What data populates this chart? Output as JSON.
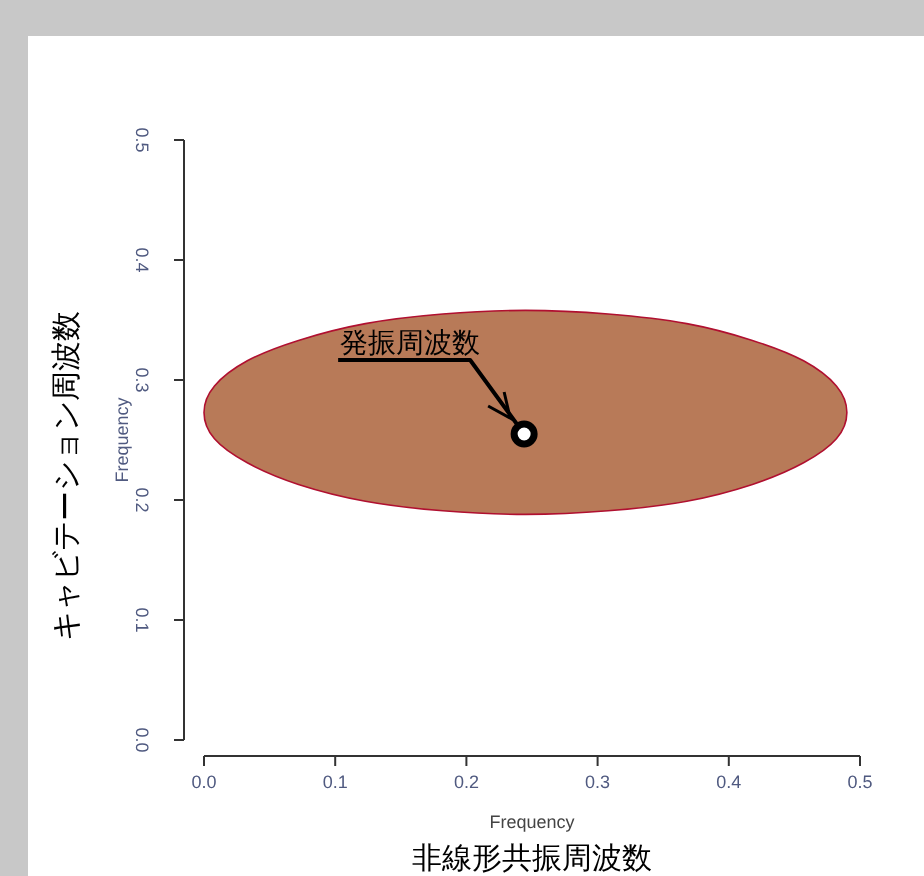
{
  "chart_data": {
    "type": "scatter",
    "xlabel": "Frequency",
    "ylabel": "Frequency",
    "xlim": [
      0,
      0.5
    ],
    "ylim": [
      0,
      0.5
    ],
    "xticks": [
      {
        "value": 0,
        "label": "0.0"
      },
      0.1,
      0.2,
      0.3,
      0.4,
      0.5
    ],
    "yticks": [
      {
        "value": 0,
        "label": "0.0"
      },
      0.1,
      0.2,
      0.3,
      0.4,
      0.5
    ],
    "grid": false,
    "series": [
      {
        "type": "area",
        "color": "#b87a58",
        "x": [
          0.49,
          0.482,
          0.457,
          0.418,
          0.368,
          0.308,
          0.245,
          0.182,
          0.123,
          0.072,
          0.033,
          0.008,
          0.0,
          0.008,
          0.033,
          0.072,
          0.123,
          0.182,
          0.245,
          0.308,
          0.368,
          0.418,
          0.457,
          0.482
        ],
        "values": [
          0.273,
          0.295,
          0.316,
          0.333,
          0.347,
          0.355,
          0.358,
          0.355,
          0.347,
          0.333,
          0.316,
          0.295,
          0.273,
          0.251,
          0.231,
          0.213,
          0.199,
          0.191,
          0.188,
          0.191,
          0.199,
          0.213,
          0.231,
          0.251
        ]
      },
      {
        "color": "#000000",
        "marker": "circle",
        "x": [
          0.244
        ],
        "values": [
          0.255
        ]
      }
    ],
    "annotations": [
      {
        "text": "発振周波数",
        "x": 0.244,
        "y": 0.255
      },
      "非線形共振周波数",
      "キャビテーション周波数"
    ]
  }
}
